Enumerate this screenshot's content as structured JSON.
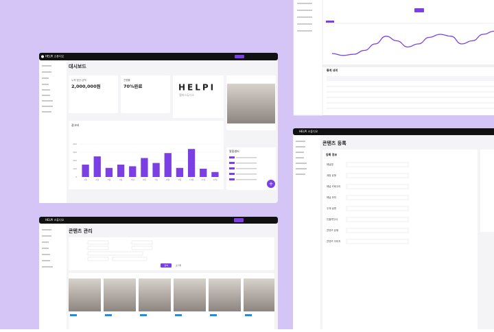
{
  "dashboard": {
    "brand": "HELPI 스튜디오",
    "title": "대시보드",
    "card1": {
      "label": "누적 정산 금액",
      "value": "2,000,000원"
    },
    "card2": {
      "label": "진행률",
      "value": "70%완료"
    },
    "logo": "HELPI",
    "logo_sub": "헬피스튜디오",
    "chart_title": "광고비",
    "chart": {
      "categories": [
        "1월",
        "2월",
        "3월",
        "4월",
        "5월",
        "6월",
        "7월",
        "8월",
        "9월",
        "10월",
        "11월",
        "12월"
      ],
      "values": [
        150,
        250,
        110,
        150,
        130,
        230,
        170,
        290,
        110,
        340,
        100,
        60
      ],
      "ylim": [
        0,
        400
      ],
      "yticks": [
        0,
        100,
        200,
        300,
        400
      ]
    },
    "notice_title": "알림센터",
    "fab": "+"
  },
  "analytics": {
    "table_title": "통계 내역",
    "line": {
      "values": [
        25,
        20,
        23,
        33,
        50,
        70,
        58,
        42,
        50,
        67,
        75,
        70,
        50,
        58,
        75,
        83
      ],
      "ylim": [
        0,
        100
      ]
    }
  },
  "content_manage": {
    "brand": "HELPI 스튜디오",
    "title": "콘텐츠 관리",
    "search": "검색",
    "reset": "초기화"
  },
  "content_register": {
    "brand": "HELPI 스튜디오",
    "title": "콘텐츠 등록",
    "section": "등록 정보",
    "fields": [
      "채널명",
      "계정 유형",
      "채널 카테고리",
      "채널 위치",
      "주제 설명",
      "인플루언서",
      "콘텐츠 유형",
      "콘텐츠 이미지"
    ]
  }
}
